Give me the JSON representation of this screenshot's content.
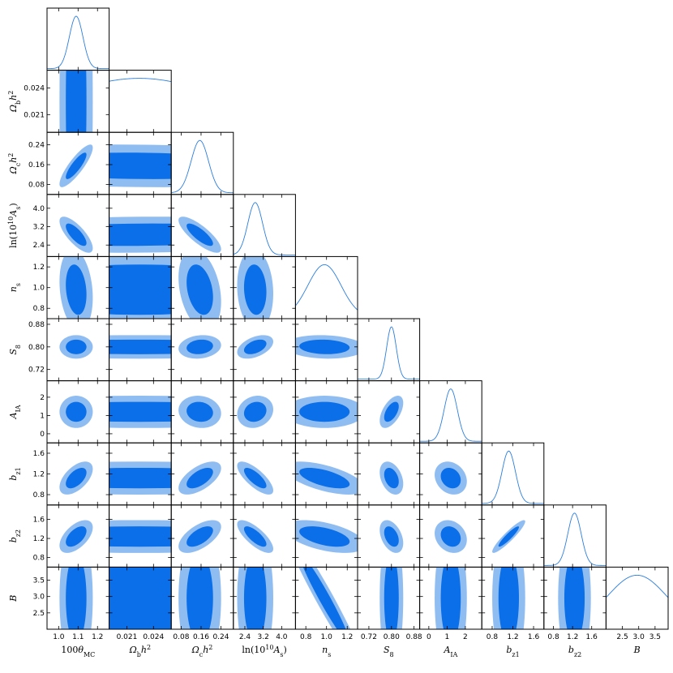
{
  "chart_data": {
    "type": "corner_plot",
    "title": "",
    "colors": {
      "inner_contour": "#0a6fe8",
      "outer_contour": "#8fbdf2",
      "marginal_line": "#2a7ee0",
      "frame": "#000000"
    },
    "parameters": [
      {
        "key": "theta",
        "label": "100θMC",
        "label_tex": [
          "100",
          "θ",
          "MC"
        ],
        "ticks": [
          1.0,
          1.1,
          1.2
        ],
        "tick_labels": [
          "1.0",
          "1.1",
          "1.2"
        ],
        "range": [
          0.94,
          1.26
        ],
        "mean": 1.09,
        "sd": 0.035
      },
      {
        "key": "omegab",
        "label": "Ωbh²",
        "label_tex": [
          "Ω",
          "b",
          "h",
          "2"
        ],
        "ticks": [
          0.021,
          0.024
        ],
        "tick_labels": [
          "0.021",
          "0.024"
        ],
        "range": [
          0.019,
          0.026
        ],
        "mean": 0.0224,
        "sd": 0.01
      },
      {
        "key": "omegac",
        "label": "Ωch²",
        "label_tex": [
          "Ω",
          "c",
          "h",
          "2"
        ],
        "ticks": [
          0.08,
          0.16,
          0.24
        ],
        "tick_labels": [
          "0.08",
          "0.16",
          "0.24"
        ],
        "range": [
          0.04,
          0.29
        ],
        "mean": 0.155,
        "sd": 0.035
      },
      {
        "key": "logA",
        "label": "ln(10¹⁰As)",
        "label_tex": [
          "ln(10",
          "10",
          "A",
          "s",
          ")"
        ],
        "ticks": [
          2.4,
          3.2,
          4.0
        ],
        "tick_labels": [
          "2.4",
          "3.2",
          "4.0"
        ],
        "range": [
          1.9,
          4.6
        ],
        "mean": 2.85,
        "sd": 0.32
      },
      {
        "key": "ns",
        "label": "ns",
        "label_tex": [
          "n",
          "s"
        ],
        "ticks": [
          0.8,
          1.0,
          1.2
        ],
        "tick_labels": [
          "0.8",
          "1.0",
          "1.2"
        ],
        "range": [
          0.7,
          1.3
        ],
        "mean": 0.98,
        "sd": 0.16
      },
      {
        "key": "S8",
        "label": "S8",
        "label_tex": [
          "S",
          "8"
        ],
        "ticks": [
          0.72,
          0.8,
          0.88
        ],
        "tick_labels": [
          "0.72",
          "0.80",
          "0.88"
        ],
        "range": [
          0.68,
          0.9
        ],
        "mean": 0.8,
        "sd": 0.017
      },
      {
        "key": "AIA",
        "label": "AIA",
        "label_tex": [
          "A",
          "IA"
        ],
        "ticks": [
          0,
          1,
          2
        ],
        "tick_labels": [
          "0",
          "1",
          "2"
        ],
        "range": [
          -0.5,
          2.9
        ],
        "mean": 1.2,
        "sd": 0.36
      },
      {
        "key": "bz1",
        "label": "bz1",
        "label_tex": [
          "b",
          "z1"
        ],
        "ticks": [
          0.8,
          1.2,
          1.6
        ],
        "tick_labels": [
          "0.8",
          "1.2",
          "1.6"
        ],
        "range": [
          0.6,
          1.8
        ],
        "mean": 1.12,
        "sd": 0.13
      },
      {
        "key": "bz2",
        "label": "bz2",
        "label_tex": [
          "b",
          "z2"
        ],
        "ticks": [
          0.8,
          1.2,
          1.6
        ],
        "tick_labels": [
          "0.8",
          "1.2",
          "1.6"
        ],
        "range": [
          0.6,
          1.9
        ],
        "mean": 1.24,
        "sd": 0.14
      },
      {
        "key": "B",
        "label": "B",
        "label_tex": [
          "B"
        ],
        "ticks": [
          2.5,
          3.0,
          3.5
        ],
        "tick_labels": [
          "2.5",
          "3.0",
          "3.5"
        ],
        "range": [
          2.0,
          3.9
        ],
        "mean": 2.95,
        "sd": 0.9
      }
    ],
    "correlations": [
      [
        "theta",
        "omegac",
        0.85
      ],
      [
        "theta",
        "logA",
        -0.75
      ],
      [
        "theta",
        "ns",
        -0.2
      ],
      [
        "theta",
        "S8",
        0.0
      ],
      [
        "theta",
        "AIA",
        0.0
      ],
      [
        "theta",
        "bz1",
        0.55
      ],
      [
        "theta",
        "bz2",
        0.55
      ],
      [
        "theta",
        "B",
        0.0
      ],
      [
        "omegab",
        "omegac",
        -0.1
      ],
      [
        "omegab",
        "logA",
        0.1
      ],
      [
        "omegac",
        "logA",
        -0.8
      ],
      [
        "omegac",
        "ns",
        -0.3
      ],
      [
        "omegac",
        "S8",
        0.15
      ],
      [
        "omegac",
        "AIA",
        -0.1
      ],
      [
        "omegac",
        "bz1",
        0.6
      ],
      [
        "omegac",
        "bz2",
        0.6
      ],
      [
        "logA",
        "ns",
        -0.1
      ],
      [
        "logA",
        "S8",
        0.45
      ],
      [
        "logA",
        "AIA",
        0.15
      ],
      [
        "logA",
        "bz1",
        -0.75
      ],
      [
        "logA",
        "bz2",
        -0.75
      ],
      [
        "ns",
        "S8",
        -0.1
      ],
      [
        "ns",
        "bz1",
        -0.6
      ],
      [
        "ns",
        "bz2",
        -0.5
      ],
      [
        "ns",
        "B",
        -0.97
      ],
      [
        "S8",
        "AIA",
        0.55
      ],
      [
        "S8",
        "bz1",
        -0.35
      ],
      [
        "S8",
        "bz2",
        -0.4
      ],
      [
        "AIA",
        "bz1",
        -0.2
      ],
      [
        "AIA",
        "bz2",
        -0.2
      ],
      [
        "bz1",
        "bz2",
        0.92
      ]
    ]
  }
}
